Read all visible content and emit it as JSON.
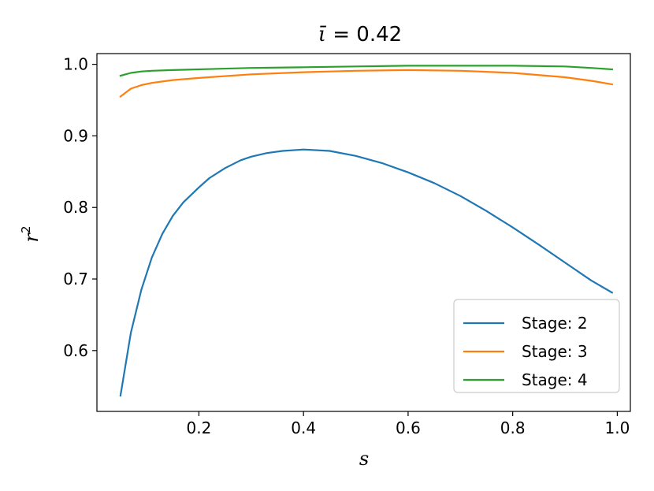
{
  "chart_data": {
    "type": "line",
    "title": {
      "var": "ῑ",
      "rest": " = 0.42"
    },
    "xlabel": "s",
    "ylabel": {
      "base": "r",
      "sup": "2"
    },
    "xlim": [
      0.005,
      1.025
    ],
    "ylim": [
      0.515,
      1.015
    ],
    "xticks": [
      0.2,
      0.4,
      0.6,
      0.8,
      1.0
    ],
    "xtick_labels": [
      "0.2",
      "0.4",
      "0.6",
      "0.8",
      "1.0"
    ],
    "yticks": [
      0.6,
      0.7,
      0.8,
      0.9,
      1.0
    ],
    "ytick_labels": [
      "0.6",
      "0.7",
      "0.8",
      "0.9",
      "1.0"
    ],
    "grid": false,
    "legend_position": "bottom-right",
    "series": [
      {
        "name": "Stage: 2",
        "color": "#1f77b4",
        "x": [
          0.05,
          0.07,
          0.09,
          0.11,
          0.13,
          0.15,
          0.17,
          0.2,
          0.22,
          0.25,
          0.28,
          0.3,
          0.33,
          0.36,
          0.4,
          0.45,
          0.5,
          0.55,
          0.6,
          0.65,
          0.7,
          0.75,
          0.8,
          0.85,
          0.9,
          0.95,
          0.99
        ],
        "y": [
          0.537,
          0.625,
          0.685,
          0.73,
          0.763,
          0.788,
          0.807,
          0.828,
          0.841,
          0.855,
          0.866,
          0.871,
          0.876,
          0.879,
          0.881,
          0.879,
          0.872,
          0.862,
          0.849,
          0.834,
          0.816,
          0.795,
          0.772,
          0.748,
          0.723,
          0.698,
          0.681
        ]
      },
      {
        "name": "Stage: 3",
        "color": "#ff7f0e",
        "x": [
          0.05,
          0.07,
          0.09,
          0.11,
          0.13,
          0.15,
          0.2,
          0.3,
          0.4,
          0.5,
          0.6,
          0.7,
          0.8,
          0.9,
          0.95,
          0.99
        ],
        "y": [
          0.955,
          0.966,
          0.971,
          0.974,
          0.976,
          0.978,
          0.981,
          0.986,
          0.989,
          0.991,
          0.992,
          0.991,
          0.988,
          0.982,
          0.977,
          0.972
        ]
      },
      {
        "name": "Stage: 4",
        "color": "#2ca02c",
        "x": [
          0.05,
          0.07,
          0.09,
          0.11,
          0.15,
          0.2,
          0.3,
          0.4,
          0.5,
          0.6,
          0.7,
          0.8,
          0.9,
          0.95,
          0.99
        ],
        "y": [
          0.984,
          0.988,
          0.99,
          0.991,
          0.992,
          0.993,
          0.995,
          0.996,
          0.997,
          0.998,
          0.998,
          0.998,
          0.997,
          0.995,
          0.993
        ]
      }
    ]
  }
}
